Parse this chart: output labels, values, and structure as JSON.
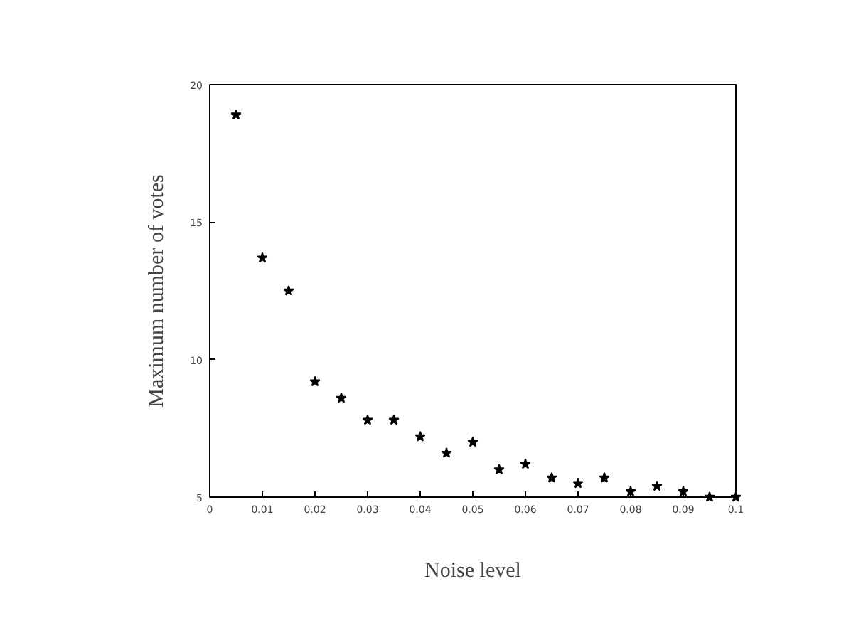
{
  "chart_data": {
    "type": "scatter",
    "xlabel": "Noise level",
    "ylabel": "Maximum number of votes",
    "x": [
      0.005,
      0.01,
      0.015,
      0.02,
      0.025,
      0.03,
      0.035,
      0.04,
      0.045,
      0.05,
      0.055,
      0.06,
      0.065,
      0.07,
      0.075,
      0.08,
      0.085,
      0.09,
      0.095,
      0.1
    ],
    "series": [
      {
        "color": "#000000",
        "values": [
          18.9,
          13.7,
          12.5,
          9.2,
          8.6,
          7.8,
          7.8,
          7.2,
          6.6,
          7.0,
          6.0,
          6.2,
          5.7,
          5.5,
          5.7,
          5.2,
          5.4,
          5.2,
          5.0,
          5.0
        ]
      }
    ],
    "xlim": [
      0,
      0.1
    ],
    "ylim": [
      5,
      20
    ],
    "xticks": [
      0,
      0.01,
      0.02,
      0.03,
      0.04,
      0.05,
      0.06,
      0.07,
      0.08,
      0.09,
      0.1
    ],
    "yticks": [
      5,
      10,
      15,
      20
    ],
    "marker": "star",
    "grid": false
  }
}
